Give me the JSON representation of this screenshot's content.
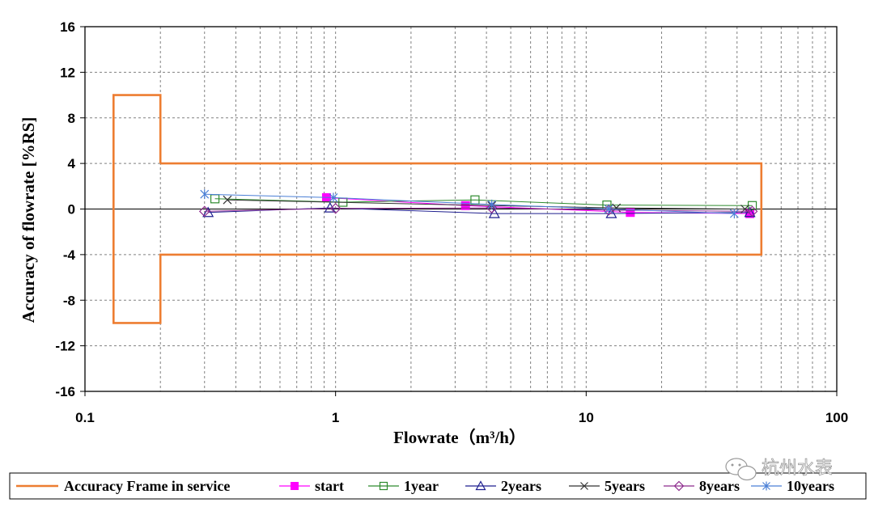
{
  "chart_data": {
    "type": "scatter",
    "title": "",
    "xlabel": "Flowrate（m³/h）",
    "ylabel": "Accuracy of flowrate [%RS]",
    "xscale": "log",
    "xlim": [
      0.1,
      100
    ],
    "ylim": [
      -16,
      16
    ],
    "xticks": [
      "0.1",
      "1",
      "10",
      "100"
    ],
    "yticks": [
      16,
      12,
      8,
      4,
      0,
      -4,
      -8,
      -12,
      -16
    ],
    "grid": true,
    "legend_position": "bottom",
    "frame": {
      "name": "Accuracy Frame in service",
      "color": "#ED7D31",
      "points": [
        [
          0.2,
          4
        ],
        [
          0.2,
          10
        ],
        [
          0.13,
          10
        ],
        [
          0.13,
          -10
        ],
        [
          0.2,
          -10
        ],
        [
          0.2,
          -4
        ],
        [
          50,
          -4
        ],
        [
          50,
          4
        ],
        [
          0.2,
          4
        ]
      ]
    },
    "series": [
      {
        "name": "start",
        "color": "#FF00FF",
        "marker": "square-filled",
        "x": [
          0.92,
          3.3,
          15,
          45
        ],
        "y": [
          1.0,
          0.3,
          -0.3,
          -0.4
        ]
      },
      {
        "name": "1year",
        "color": "#2E8B2E",
        "marker": "square-open",
        "x": [
          0.33,
          1.07,
          3.6,
          12.1,
          46
        ],
        "y": [
          0.9,
          0.6,
          0.8,
          0.35,
          0.3
        ]
      },
      {
        "name": "2years",
        "color": "#1F1F8F",
        "marker": "triangle-open",
        "x": [
          0.31,
          0.95,
          4.3,
          12.6,
          45
        ],
        "y": [
          -0.3,
          0.1,
          -0.4,
          -0.4,
          -0.3
        ]
      },
      {
        "name": "5years",
        "color": "#333333",
        "marker": "x",
        "x": [
          0.37,
          4.2,
          13.2,
          43
        ],
        "y": [
          0.8,
          0.3,
          0.1,
          0.0
        ]
      },
      {
        "name": "8years",
        "color": "#8E2C8E",
        "marker": "diamond-open",
        "x": [
          0.3,
          1.0,
          4.2,
          12.3,
          46
        ],
        "y": [
          -0.2,
          0.05,
          0.1,
          -0.1,
          -0.2
        ]
      },
      {
        "name": "10years",
        "color": "#4A7FD6",
        "marker": "star",
        "x": [
          0.3,
          0.98,
          4.2,
          12.3,
          39
        ],
        "y": [
          1.3,
          1.0,
          0.4,
          0.0,
          -0.4
        ]
      }
    ]
  },
  "watermark": {
    "text": "杭州水表",
    "icon": "wechat-icon"
  }
}
